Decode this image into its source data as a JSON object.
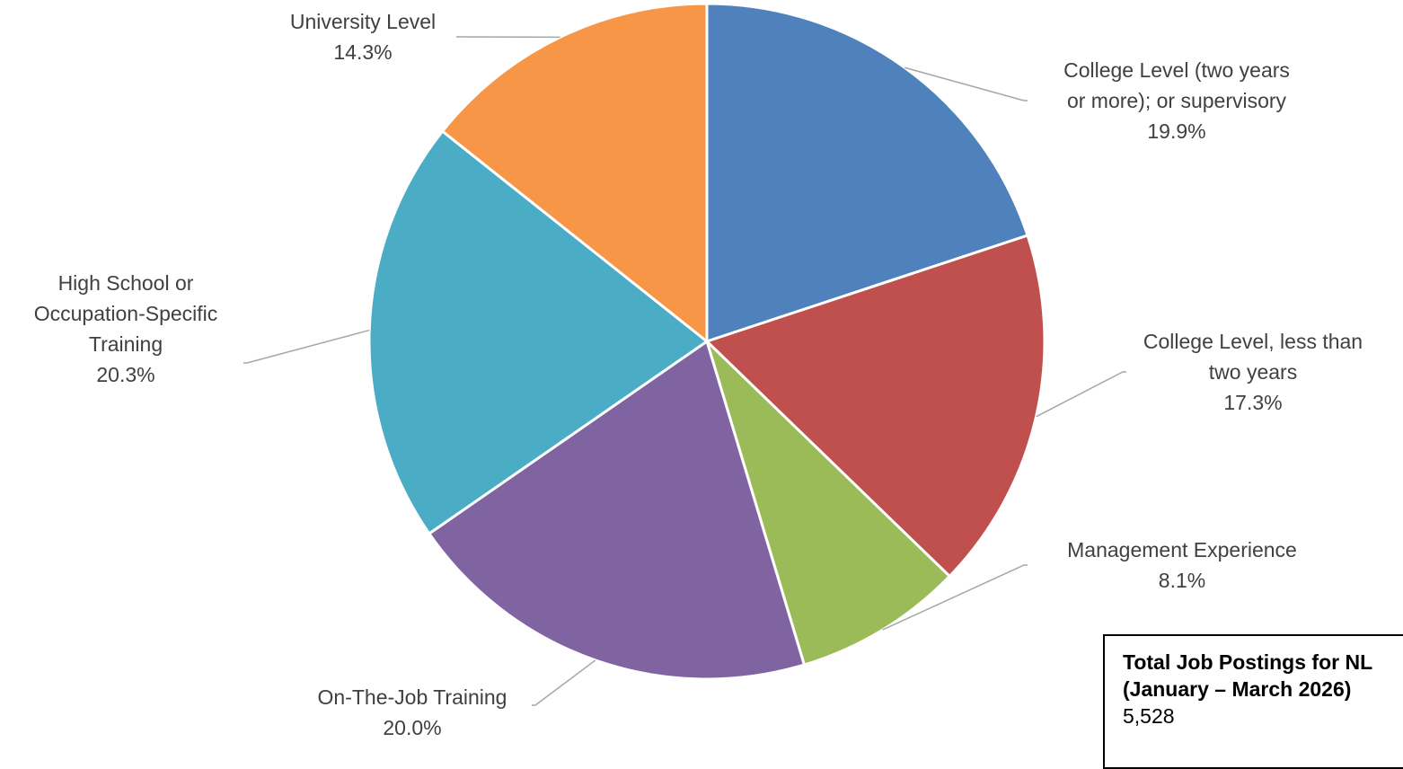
{
  "chart_data": {
    "type": "pie",
    "title": "",
    "start_angle_deg": 0,
    "direction": "clockwise",
    "slices": [
      {
        "label": "College Level (two years or more); or supervisory",
        "label_lines": [
          "College Level (two years",
          "or more); or supervisory"
        ],
        "value": 19.9,
        "value_label": "19.9%",
        "color": "#4F81BD"
      },
      {
        "label": "College Level, less than two years",
        "label_lines": [
          "College Level, less than",
          "two years"
        ],
        "value": 17.3,
        "value_label": "17.3%",
        "color": "#C0504D"
      },
      {
        "label": "Management Experience",
        "label_lines": [
          "Management Experience"
        ],
        "value": 8.1,
        "value_label": "8.1%",
        "color": "#9BBB59"
      },
      {
        "label": "On-The-Job Training",
        "label_lines": [
          "On-The-Job Training"
        ],
        "value": 20.0,
        "value_label": "20.0%",
        "color": "#8064A2"
      },
      {
        "label": "High School or Occupation-Specific Training",
        "label_lines": [
          "High School or",
          "Occupation-Specific",
          "Training"
        ],
        "value": 20.3,
        "value_label": "20.3%",
        "color": "#4BACC6"
      },
      {
        "label": "University Level",
        "label_lines": [
          "University Level"
        ],
        "value": 14.3,
        "value_label": "14.3%",
        "color": "#F79646"
      }
    ]
  },
  "info_box": {
    "title_line1": "Total Job Postings for NL",
    "title_line2": "(January – March 2026)",
    "value": "5,528"
  }
}
